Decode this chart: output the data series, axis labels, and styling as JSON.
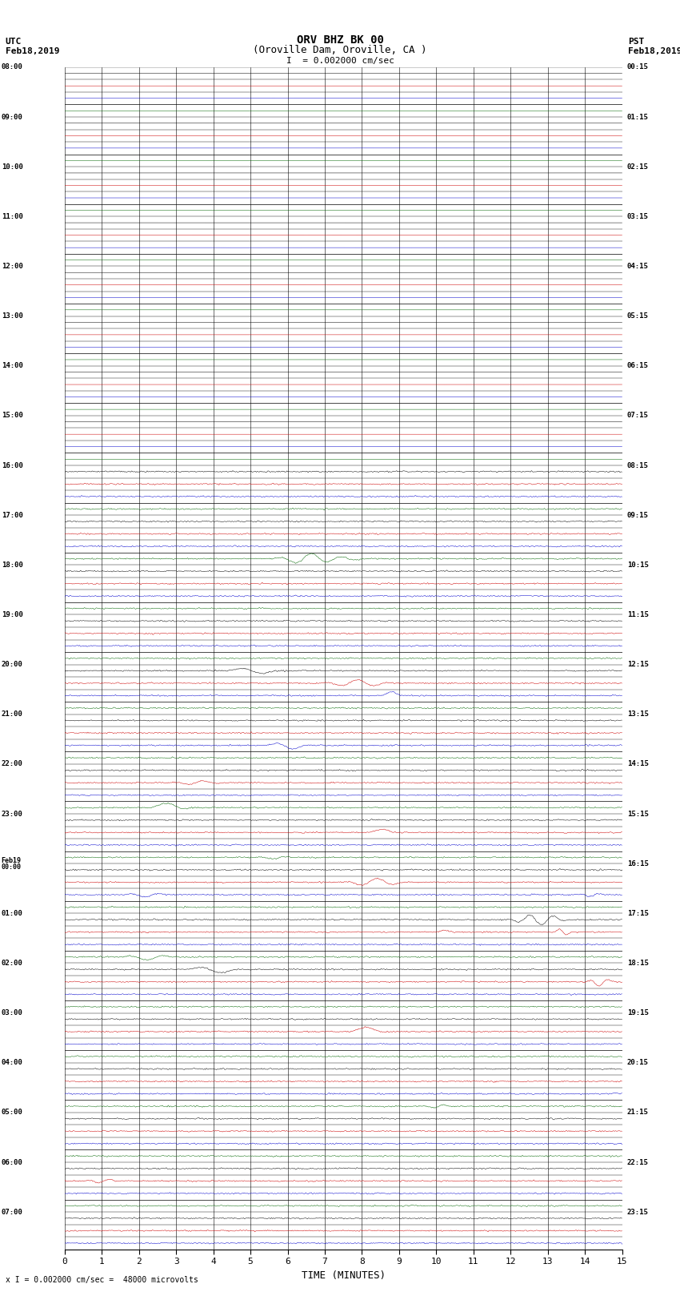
{
  "title_line1": "ORV BHZ BK 00",
  "title_line2": "(Oroville Dam, Oroville, CA )",
  "title_line3": "I  = 0.002000 cm/sec",
  "label_left_top1": "UTC",
  "label_left_top2": "Feb18,2019",
  "label_right_top1": "PST",
  "label_right_top2": "Feb18,2019",
  "xlabel": "TIME (MINUTES)",
  "footer": "x I = 0.002000 cm/sec =  48000 microvolts",
  "xmin": 0,
  "xmax": 15,
  "xticks": [
    0,
    1,
    2,
    3,
    4,
    5,
    6,
    7,
    8,
    9,
    10,
    11,
    12,
    13,
    14,
    15
  ],
  "trace_colors_cycle": [
    "#000000",
    "#cc0000",
    "#0000cc",
    "#006600"
  ],
  "background": "#ffffff",
  "quiet_noise_amp": 0.025,
  "active_noise_amp": 0.06,
  "signal_amplitude_min": 0.12,
  "signal_amplitude_max": 0.42,
  "quiet_rows": 32,
  "utc_labels": [
    "08:00",
    "",
    "",
    "",
    "09:00",
    "",
    "",
    "",
    "10:00",
    "",
    "",
    "",
    "11:00",
    "",
    "",
    "",
    "12:00",
    "",
    "",
    "",
    "13:00",
    "",
    "",
    "",
    "14:00",
    "",
    "",
    "",
    "15:00",
    "",
    "",
    "",
    "16:00",
    "",
    "",
    "",
    "17:00",
    "",
    "",
    "",
    "18:00",
    "",
    "",
    "",
    "19:00",
    "",
    "",
    "",
    "20:00",
    "",
    "",
    "",
    "21:00",
    "",
    "",
    "",
    "22:00",
    "",
    "",
    "",
    "23:00",
    "",
    "",
    "",
    "Feb19\n00:00",
    "",
    "",
    "",
    "01:00",
    "",
    "",
    "",
    "02:00",
    "",
    "",
    "",
    "03:00",
    "",
    "",
    "",
    "04:00",
    "",
    "",
    "",
    "05:00",
    "",
    "",
    "",
    "06:00",
    "",
    "",
    "",
    "07:00",
    "",
    ""
  ],
  "pst_labels": [
    "00:15",
    "",
    "",
    "",
    "01:15",
    "",
    "",
    "",
    "02:15",
    "",
    "",
    "",
    "03:15",
    "",
    "",
    "",
    "04:15",
    "",
    "",
    "",
    "05:15",
    "",
    "",
    "",
    "06:15",
    "",
    "",
    "",
    "07:15",
    "",
    "",
    "",
    "08:15",
    "",
    "",
    "",
    "09:15",
    "",
    "",
    "",
    "10:15",
    "",
    "",
    "",
    "11:15",
    "",
    "",
    "",
    "12:15",
    "",
    "",
    "",
    "13:15",
    "",
    "",
    "",
    "14:15",
    "",
    "",
    "",
    "15:15",
    "",
    "",
    "",
    "16:15",
    "",
    "",
    "",
    "17:15",
    "",
    "",
    "",
    "18:15",
    "",
    "",
    "",
    "19:15",
    "",
    "",
    "",
    "20:15",
    "",
    "",
    "",
    "21:15",
    "",
    "",
    "",
    "22:15",
    "",
    "",
    "",
    "23:15",
    "",
    ""
  ],
  "seed": 12345
}
